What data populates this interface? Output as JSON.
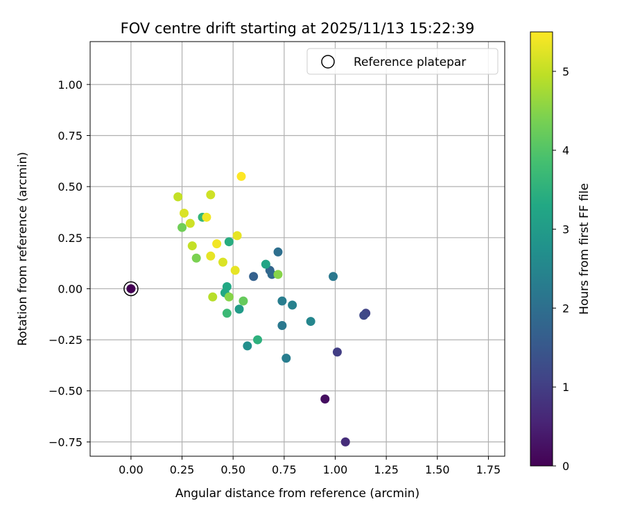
{
  "chart_data": {
    "type": "scatter",
    "title": "FOV centre drift starting at 2025/11/13 15:22:39",
    "xlabel": "Angular distance from reference (arcmin)",
    "ylabel": "Rotation from reference (arcmin)",
    "xlim": [
      -0.2,
      1.83
    ],
    "ylim": [
      -0.82,
      1.21
    ],
    "xticks": [
      "0.00",
      "0.25",
      "0.50",
      "0.75",
      "1.00",
      "1.25",
      "1.50",
      "1.75"
    ],
    "xtick_values": [
      0,
      0.25,
      0.5,
      0.75,
      1.0,
      1.25,
      1.5,
      1.75
    ],
    "yticks": [
      "1.00",
      "0.75",
      "0.50",
      "0.25",
      "0.00",
      "−0.25",
      "−0.50",
      "−0.75"
    ],
    "ytick_values": [
      1.0,
      0.75,
      0.5,
      0.25,
      0.0,
      -0.25,
      -0.5,
      -0.75
    ],
    "grid": true,
    "legend": {
      "label": "Reference platepar",
      "position": "top-right"
    },
    "reference_point": {
      "x": 0.0,
      "y": 0.0
    },
    "colorbar": {
      "label": "Hours from first FF file",
      "ticks": [
        "0",
        "1",
        "2",
        "3",
        "4",
        "5"
      ],
      "tick_values": [
        0,
        1,
        2,
        3,
        4,
        5
      ],
      "range": [
        0,
        5.5
      ],
      "colormap": "viridis"
    },
    "points": [
      {
        "x": 0.0,
        "y": 0.0,
        "h": 0.0
      },
      {
        "x": 0.95,
        "y": -0.54,
        "h": 0.2
      },
      {
        "x": 1.05,
        "y": -0.75,
        "h": 0.7
      },
      {
        "x": 1.01,
        "y": -0.31,
        "h": 1.0
      },
      {
        "x": 1.15,
        "y": -0.12,
        "h": 1.1
      },
      {
        "x": 1.14,
        "y": -0.13,
        "h": 1.2
      },
      {
        "x": 0.6,
        "y": 0.06,
        "h": 1.7
      },
      {
        "x": 0.68,
        "y": 0.09,
        "h": 1.8
      },
      {
        "x": 0.69,
        "y": 0.07,
        "h": 1.9
      },
      {
        "x": 0.72,
        "y": 0.18,
        "h": 2.0
      },
      {
        "x": 0.99,
        "y": 0.06,
        "h": 2.2
      },
      {
        "x": 0.74,
        "y": -0.18,
        "h": 2.2
      },
      {
        "x": 0.76,
        "y": -0.34,
        "h": 2.3
      },
      {
        "x": 0.74,
        "y": -0.06,
        "h": 2.3
      },
      {
        "x": 0.79,
        "y": -0.08,
        "h": 2.4
      },
      {
        "x": 0.88,
        "y": -0.16,
        "h": 2.5
      },
      {
        "x": 0.57,
        "y": -0.28,
        "h": 2.7
      },
      {
        "x": 0.53,
        "y": -0.1,
        "h": 3.0
      },
      {
        "x": 0.66,
        "y": 0.12,
        "h": 3.2
      },
      {
        "x": 0.47,
        "y": 0.01,
        "h": 3.3
      },
      {
        "x": 0.46,
        "y": -0.02,
        "h": 3.3
      },
      {
        "x": 0.48,
        "y": 0.23,
        "h": 3.4
      },
      {
        "x": 0.62,
        "y": -0.25,
        "h": 3.5
      },
      {
        "x": 0.35,
        "y": 0.35,
        "h": 3.6
      },
      {
        "x": 0.47,
        "y": -0.12,
        "h": 3.7
      },
      {
        "x": 0.55,
        "y": -0.06,
        "h": 4.2
      },
      {
        "x": 0.25,
        "y": 0.3,
        "h": 4.3
      },
      {
        "x": 0.32,
        "y": 0.15,
        "h": 4.4
      },
      {
        "x": 0.48,
        "y": -0.04,
        "h": 4.5
      },
      {
        "x": 0.72,
        "y": 0.07,
        "h": 4.5
      },
      {
        "x": 0.4,
        "y": -0.04,
        "h": 4.9
      },
      {
        "x": 0.23,
        "y": 0.45,
        "h": 5.0
      },
      {
        "x": 0.3,
        "y": 0.21,
        "h": 5.0
      },
      {
        "x": 0.39,
        "y": 0.46,
        "h": 5.1
      },
      {
        "x": 0.29,
        "y": 0.32,
        "h": 5.1
      },
      {
        "x": 0.45,
        "y": 0.13,
        "h": 5.2
      },
      {
        "x": 0.26,
        "y": 0.37,
        "h": 5.2
      },
      {
        "x": 0.39,
        "y": 0.16,
        "h": 5.3
      },
      {
        "x": 0.52,
        "y": 0.26,
        "h": 5.3
      },
      {
        "x": 0.51,
        "y": 0.09,
        "h": 5.3
      },
      {
        "x": 0.42,
        "y": 0.22,
        "h": 5.4
      },
      {
        "x": 0.37,
        "y": 0.35,
        "h": 5.4
      },
      {
        "x": 0.54,
        "y": 0.55,
        "h": 5.5
      }
    ]
  }
}
